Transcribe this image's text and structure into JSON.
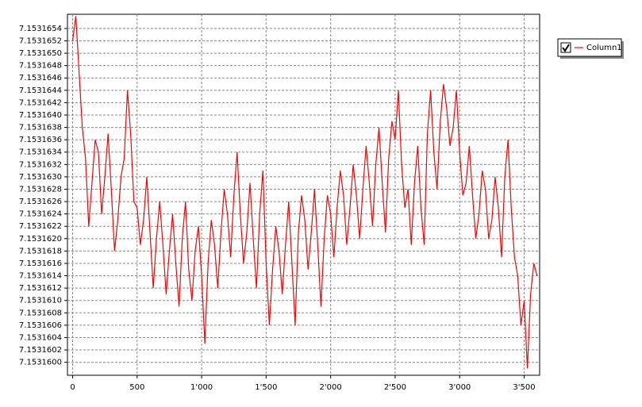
{
  "chart_data": {
    "type": "line",
    "x": [
      0,
      25,
      50,
      75,
      100,
      125,
      150,
      175,
      200,
      225,
      250,
      275,
      300,
      325,
      350,
      375,
      400,
      425,
      450,
      475,
      500,
      525,
      550,
      575,
      600,
      625,
      650,
      675,
      700,
      725,
      750,
      775,
      800,
      825,
      850,
      875,
      900,
      925,
      950,
      975,
      1000,
      1025,
      1050,
      1075,
      1100,
      1125,
      1150,
      1175,
      1200,
      1225,
      1250,
      1275,
      1300,
      1325,
      1350,
      1375,
      1400,
      1425,
      1450,
      1475,
      1500,
      1525,
      1550,
      1575,
      1600,
      1625,
      1650,
      1675,
      1700,
      1725,
      1750,
      1775,
      1800,
      1825,
      1850,
      1875,
      1900,
      1925,
      1950,
      1975,
      2000,
      2025,
      2050,
      2075,
      2100,
      2125,
      2150,
      2175,
      2200,
      2225,
      2250,
      2275,
      2300,
      2325,
      2350,
      2375,
      2400,
      2425,
      2450,
      2475,
      2500,
      2525,
      2550,
      2575,
      2600,
      2625,
      2650,
      2675,
      2700,
      2725,
      2750,
      2775,
      2800,
      2825,
      2850,
      2875,
      2900,
      2925,
      2950,
      2975,
      3000,
      3025,
      3050,
      3075,
      3100,
      3125,
      3150,
      3175,
      3200,
      3225,
      3250,
      3275,
      3300,
      3325,
      3350,
      3375,
      3400,
      3425,
      3450,
      3475,
      3500,
      3525,
      3550,
      3575,
      3600
    ],
    "series": [
      {
        "name": "Column1",
        "color": "#ff0000",
        "values": [
          7.1531652,
          7.1531656,
          7.1531647,
          7.1531638,
          7.1531633,
          7.1531622,
          7.1531629,
          7.1531636,
          7.1531634,
          7.1531624,
          7.153163,
          7.1531637,
          7.1531628,
          7.1531618,
          7.1531623,
          7.153163,
          7.1531633,
          7.1531644,
          7.1531637,
          7.1531626,
          7.1531625,
          7.1531619,
          7.1531623,
          7.153163,
          7.1531621,
          7.1531612,
          7.153162,
          7.1531626,
          7.1531619,
          7.1531611,
          7.1531618,
          7.1531624,
          7.1531616,
          7.1531609,
          7.153162,
          7.1531626,
          7.1531615,
          7.153161,
          7.1531618,
          7.1531622,
          7.1531614,
          7.1531603,
          7.1531616,
          7.1531623,
          7.1531619,
          7.1531612,
          7.1531621,
          7.1531628,
          7.1531624,
          7.1531617,
          7.1531627,
          7.1531634,
          7.1531624,
          7.1531616,
          7.1531621,
          7.1531629,
          7.153162,
          7.1531612,
          7.1531624,
          7.1531631,
          7.1531616,
          7.1531606,
          7.1531615,
          7.1531622,
          7.1531618,
          7.1531611,
          7.1531619,
          7.1531626,
          7.1531616,
          7.1531606,
          7.1531621,
          7.1531627,
          7.1531623,
          7.1531615,
          7.1531621,
          7.1531628,
          7.1531619,
          7.1531609,
          7.153162,
          7.1531627,
          7.1531624,
          7.1531617,
          7.1531625,
          7.1531631,
          7.1531627,
          7.1531619,
          7.1531625,
          7.1531632,
          7.1531627,
          7.153162,
          7.1531628,
          7.1531635,
          7.1531629,
          7.1531622,
          7.1531632,
          7.1531638,
          7.1531629,
          7.1531621,
          7.1531633,
          7.1531639,
          7.1531636,
          7.1531644,
          7.1531632,
          7.1531625,
          7.1531628,
          7.1531619,
          7.1531629,
          7.1531635,
          7.1531625,
          7.1531619,
          7.1531637,
          7.1531644,
          7.1531634,
          7.1531628,
          7.1531639,
          7.1531645,
          7.1531641,
          7.1531635,
          7.1531638,
          7.1531644,
          7.1531634,
          7.1531627,
          7.1531629,
          7.1531635,
          7.1531627,
          7.153162,
          7.1531624,
          7.1531631,
          7.1531628,
          7.153162,
          7.1531623,
          7.153163,
          7.1531625,
          7.1531617,
          7.153163,
          7.1531636,
          7.1531625,
          7.1531617,
          7.1531614,
          7.1531606,
          7.153161,
          7.1531599,
          7.1531611,
          7.1531616,
          7.1531614
        ]
      }
    ],
    "xlim": [
      -40,
      3620
    ],
    "xticks": [
      0,
      500,
      {
        "value": 1000,
        "label": "1'000"
      },
      {
        "value": 1500,
        "label": "1'500"
      },
      {
        "value": 2000,
        "label": "2'000"
      },
      {
        "value": 2500,
        "label": "2'500"
      },
      {
        "value": 3000,
        "label": "3'000"
      },
      {
        "value": 3500,
        "label": "3'500"
      }
    ],
    "ylim": [
      7.15315979,
      7.15316563
    ],
    "yticks": [
      {
        "value": 7.15316,
        "label": "7.1531600"
      },
      7.1531602,
      7.1531604,
      7.1531606,
      7.1531608,
      {
        "value": 7.153161,
        "label": "7.1531610"
      },
      7.1531612,
      7.1531614,
      7.1531616,
      7.1531618,
      {
        "value": 7.153162,
        "label": "7.1531620"
      },
      7.1531622,
      7.1531624,
      7.1531626,
      7.1531628,
      {
        "value": 7.153163,
        "label": "7.1531630"
      },
      7.1531632,
      7.1531634,
      7.1531636,
      7.1531638,
      {
        "value": 7.153164,
        "label": "7.1531640"
      },
      7.1531642,
      7.1531644,
      7.1531646,
      7.1531648,
      {
        "value": 7.153165,
        "label": "7.1531650"
      },
      7.1531652,
      7.1531654
    ],
    "grid": true,
    "legend": "right"
  }
}
